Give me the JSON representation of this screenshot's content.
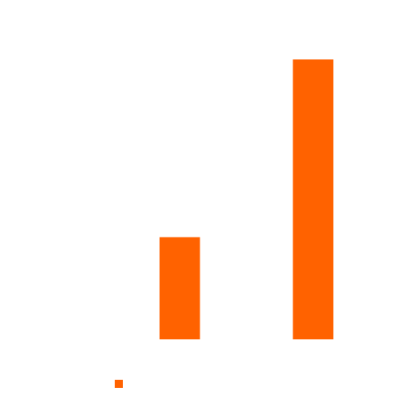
{
  "chart_data": {
    "type": "bar",
    "categories": [
      "",
      ""
    ],
    "values": [
      23,
      63
    ],
    "ylim": [
      0,
      70
    ],
    "grid": false,
    "legend": "bottom-left",
    "colors": {
      "bar": "#ff6200",
      "background": "#ffffff"
    }
  },
  "legend": {
    "items": [
      {
        "label": "",
        "color": "#ff6200"
      }
    ]
  }
}
